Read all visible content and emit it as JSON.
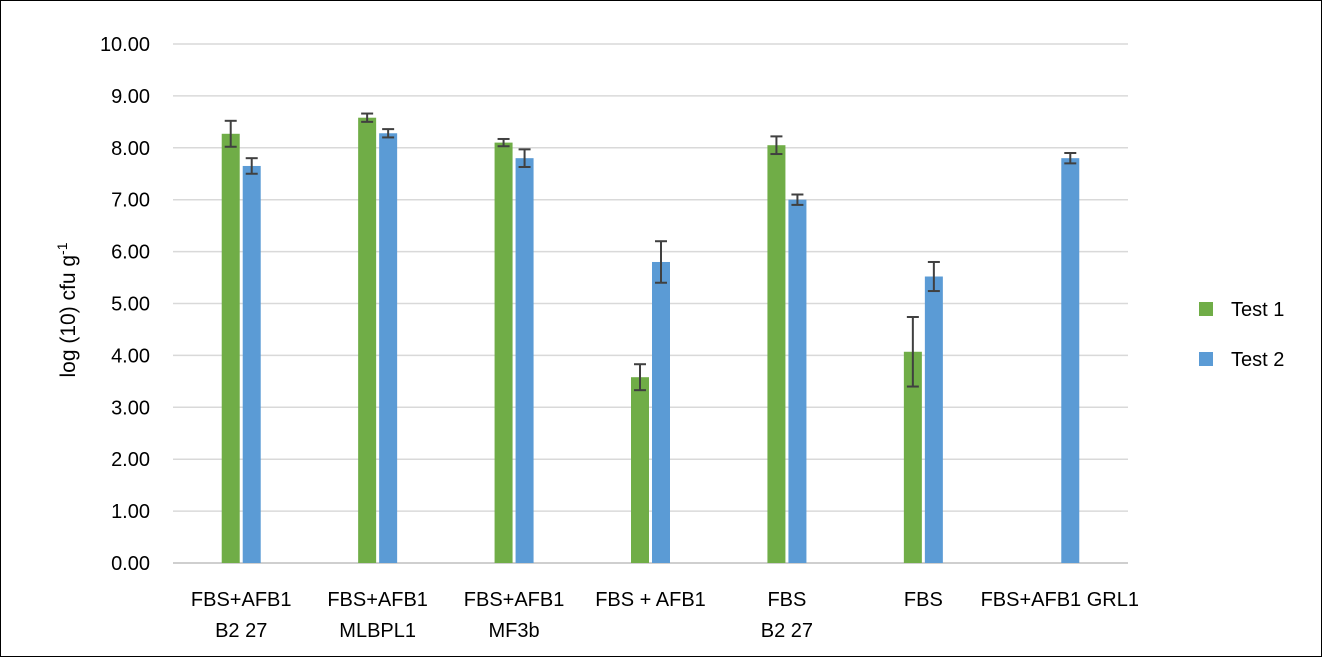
{
  "chart_data": {
    "type": "bar",
    "title": "",
    "xlabel": "",
    "ylabel": "log (10) cfu g",
    "ylabel_superscript": "-1",
    "ylim": [
      0,
      10
    ],
    "yticks": [
      "0.00",
      "1.00",
      "2.00",
      "3.00",
      "4.00",
      "5.00",
      "6.00",
      "7.00",
      "8.00",
      "9.00",
      "10.00"
    ],
    "grid": true,
    "legend_position": "right",
    "categories": [
      [
        "FBS+AFB1",
        "B2 27"
      ],
      [
        "FBS+AFB1",
        "MLBPL1"
      ],
      [
        "FBS+AFB1",
        "MF3b"
      ],
      [
        "FBS + AFB1"
      ],
      [
        "FBS",
        "B2 27"
      ],
      [
        "FBS"
      ],
      [
        "FBS+AFB1 GRL1"
      ]
    ],
    "series": [
      {
        "name": "Test 1",
        "color": "#70ad47",
        "values": [
          8.27,
          8.58,
          8.1,
          3.58,
          8.05,
          4.07,
          null
        ],
        "errors": [
          0.25,
          0.08,
          0.07,
          0.25,
          0.17,
          0.67,
          null
        ]
      },
      {
        "name": "Test 2",
        "color": "#5b9bd5",
        "values": [
          7.65,
          8.28,
          7.8,
          5.8,
          7.0,
          5.52,
          7.8
        ],
        "errors": [
          0.15,
          0.08,
          0.17,
          0.4,
          0.1,
          0.28,
          0.1
        ]
      }
    ]
  }
}
